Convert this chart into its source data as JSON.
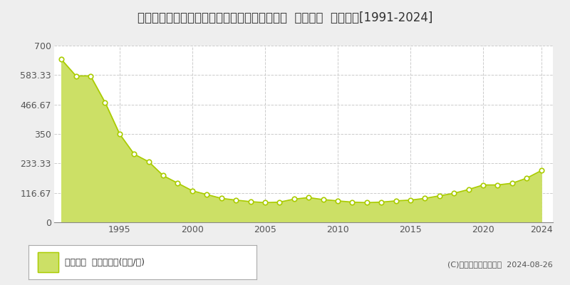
{
  "title": "北海道札幌市中央区南４条東２丁目１１番２外  地価公示  地価推移[1991-2024]",
  "years": [
    1991,
    1992,
    1993,
    1994,
    1995,
    1996,
    1997,
    1998,
    1999,
    2000,
    2001,
    2002,
    2003,
    2004,
    2005,
    2006,
    2007,
    2008,
    2009,
    2010,
    2011,
    2012,
    2013,
    2014,
    2015,
    2016,
    2017,
    2018,
    2019,
    2020,
    2021,
    2022,
    2023,
    2024
  ],
  "values": [
    645,
    580,
    580,
    475,
    350,
    270,
    240,
    185,
    155,
    125,
    110,
    95,
    88,
    82,
    78,
    80,
    92,
    98,
    90,
    85,
    80,
    78,
    80,
    85,
    88,
    95,
    105,
    115,
    130,
    148,
    148,
    155,
    175,
    205
  ],
  "line_color": "#aacc00",
  "fill_color": "#cce066",
  "marker_face_color": "#ffffff",
  "marker_edge_color": "#aacc00",
  "bg_color": "#eeeeee",
  "plot_bg_color": "#ffffff",
  "grid_color": "#cccccc",
  "yticks": [
    0,
    116.67,
    233.33,
    350,
    466.67,
    583.33,
    700
  ],
  "ytick_labels": [
    "0",
    "116.67",
    "233.33",
    "350",
    "466.67",
    "583.33",
    "700"
  ],
  "ylim": [
    0,
    700
  ],
  "xlim": [
    1990.5,
    2024.8
  ],
  "xticks": [
    1995,
    2000,
    2005,
    2010,
    2015,
    2020,
    2024
  ],
  "legend_label": "地価公示  平均嵪単価(万円/嵪)",
  "copyright": "(C)土地価格ドットコム  2024-08-26",
  "title_fontsize": 12,
  "tick_fontsize": 9,
  "legend_fontsize": 9,
  "copyright_fontsize": 8
}
